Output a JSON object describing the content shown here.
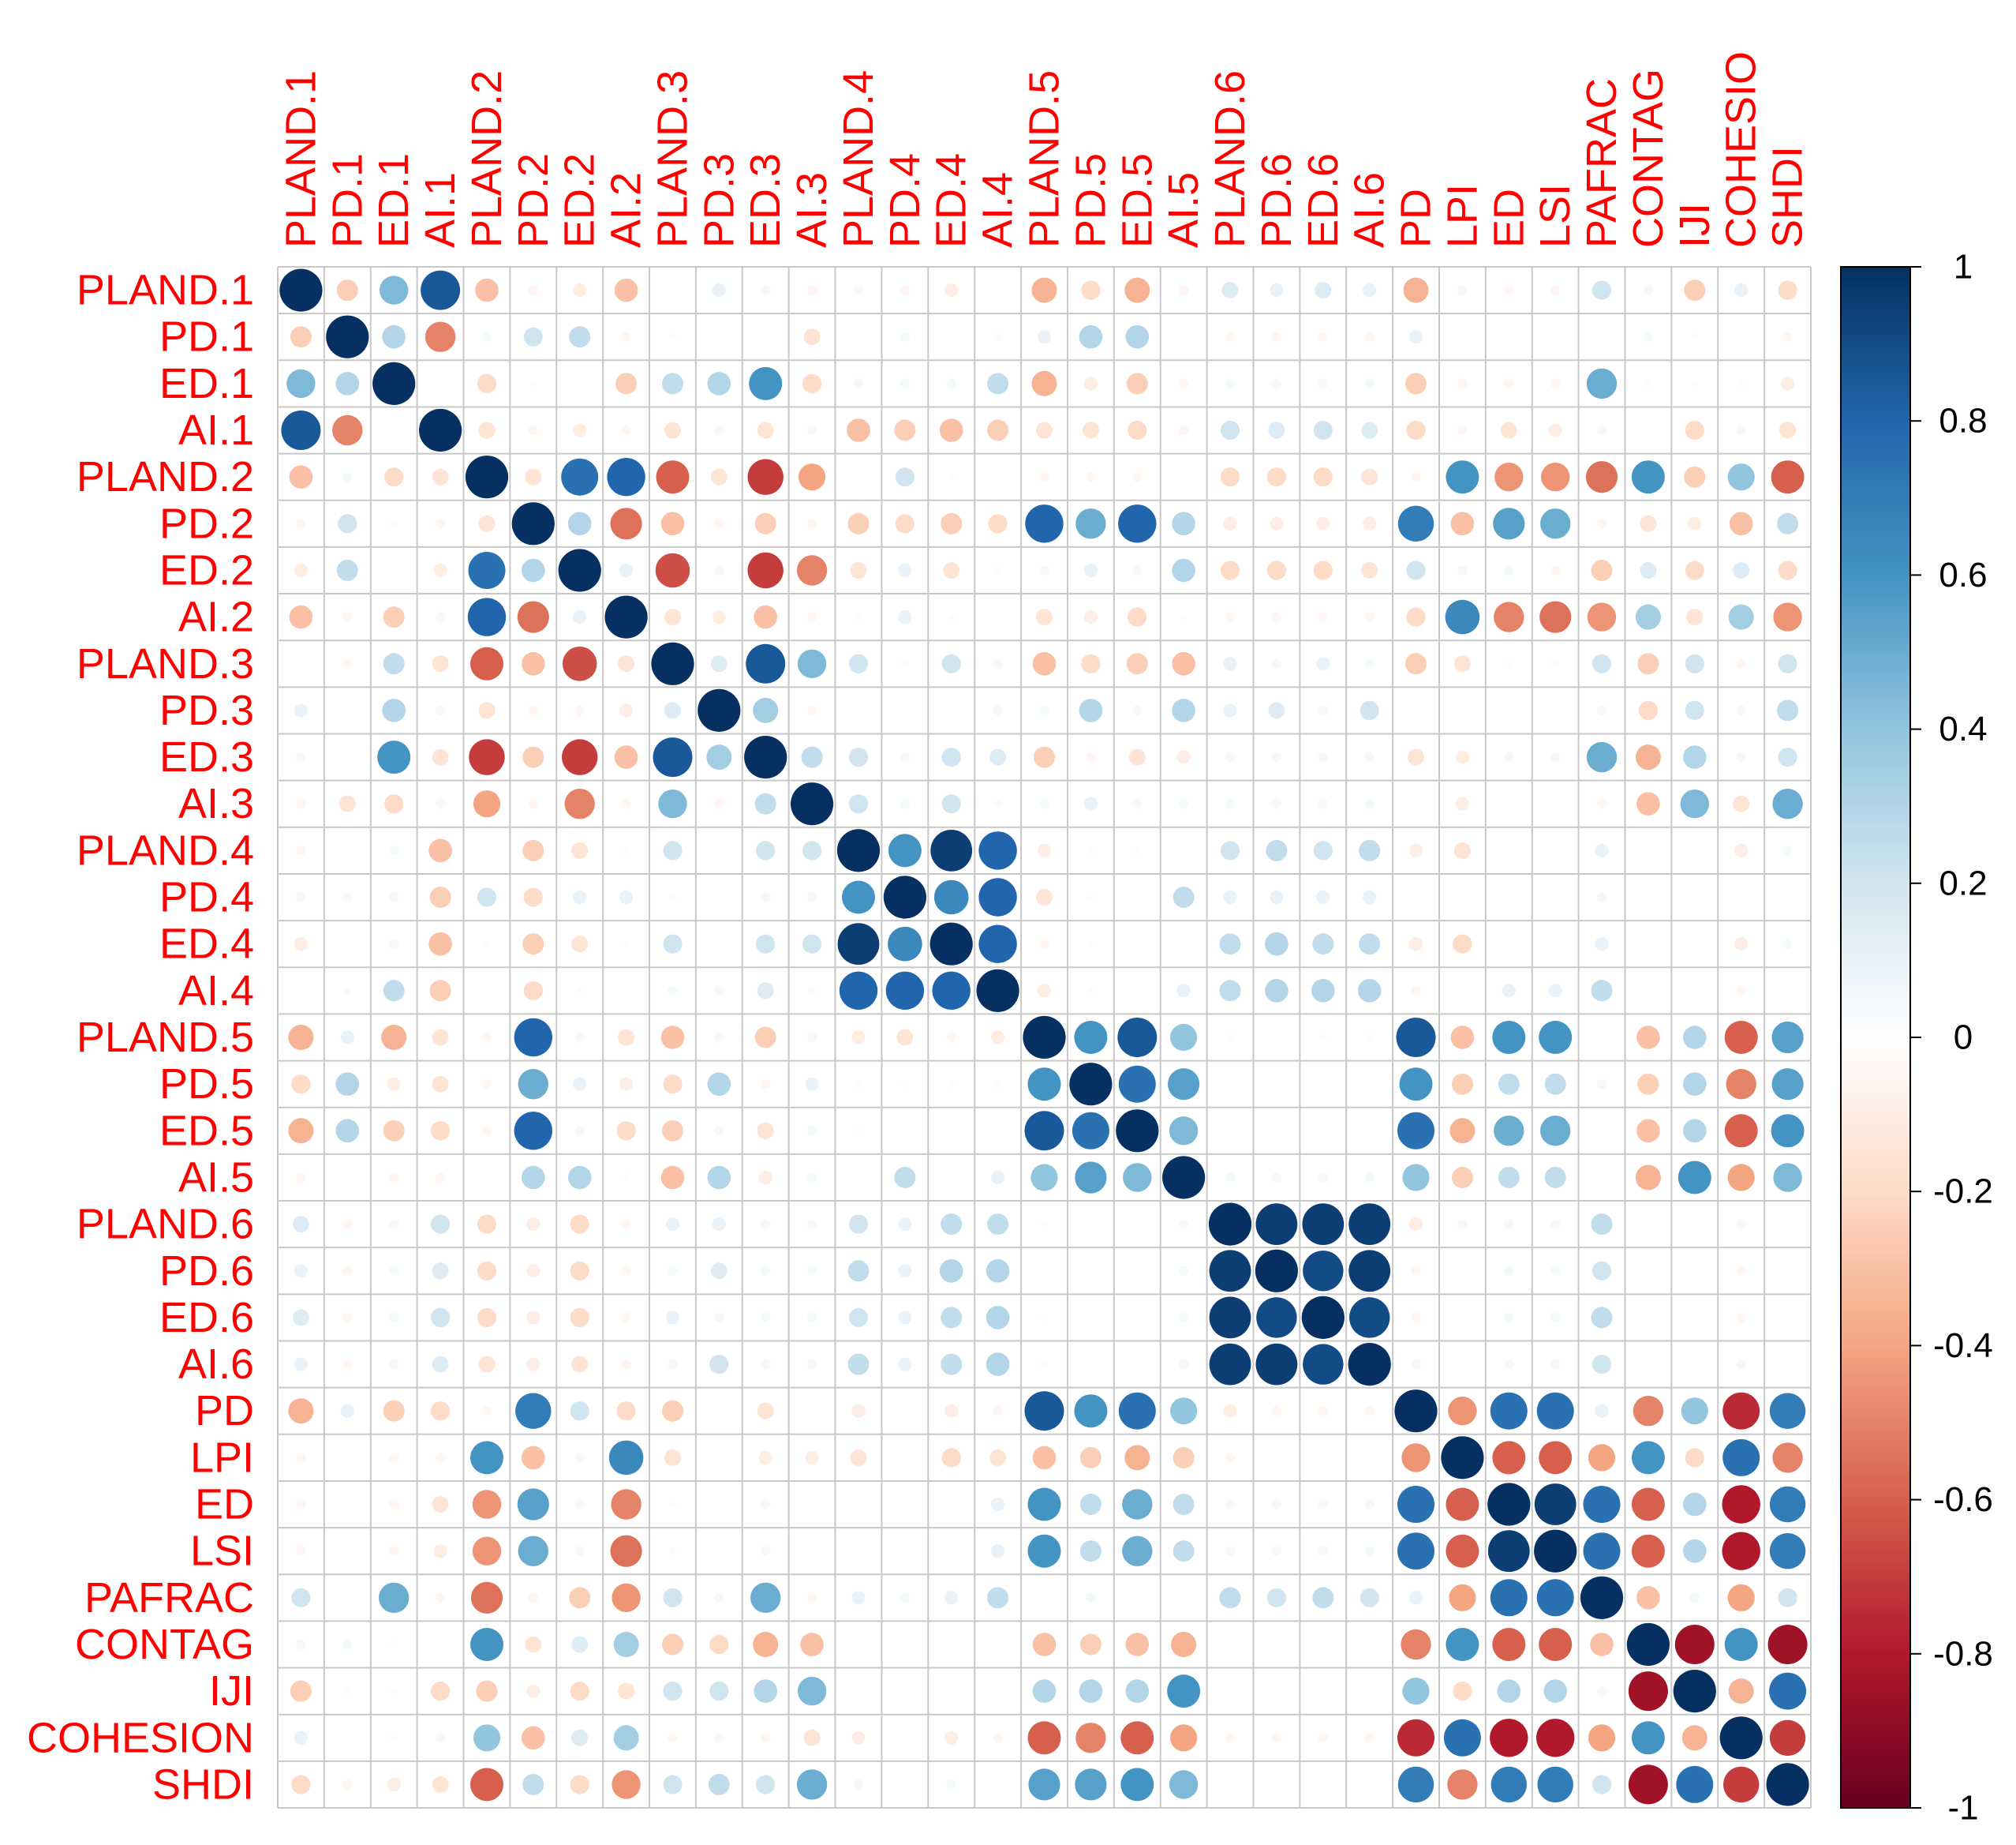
{
  "chart_data": {
    "type": "heatmap",
    "title": "",
    "labels": [
      "PLAND.1",
      "PD.1",
      "ED.1",
      "AI.1",
      "PLAND.2",
      "PD.2",
      "ED.2",
      "AI.2",
      "PLAND.3",
      "PD.3",
      "ED.3",
      "AI.3",
      "PLAND.4",
      "PD.4",
      "ED.4",
      "AI.4",
      "PLAND.5",
      "PD.5",
      "ED.5",
      "AI.5",
      "PLAND.6",
      "PD.6",
      "ED.6",
      "AI.6",
      "PD",
      "LPI",
      "ED",
      "LSI",
      "PAFRAC",
      "CONTAG",
      "IJI",
      "COHESION",
      "SHDI"
    ],
    "row_label_display": [
      "PLAND.1",
      "PD.1",
      "ED.1",
      "AI.1",
      "PLAND.2",
      "PD.2",
      "ED.2",
      "AI.2",
      "PLAND.3",
      "PD.3",
      "ED.3",
      "AI.3",
      "PLAND.4",
      "PD.4",
      "ED.4",
      "AI.4",
      "PLAND.5",
      "PD.5",
      "ED.5",
      "AI.5",
      "PLAND.6",
      "PD.6",
      "ED.6",
      "AI.6",
      "PD",
      "LPI",
      "ED",
      "LSI",
      "PAFRAC",
      "CONTAG",
      "IJI",
      "COHESION",
      "SHDI"
    ],
    "column_label_display": [
      "PLAND.1",
      "PD.1",
      "ED.1",
      "AI.1",
      "PLAND.2",
      "PD.2",
      "ED.2",
      "AI.2",
      "PLAND.3",
      "PD.3",
      "ED.3",
      "AI.3",
      "PLAND.4",
      "PD.4",
      "ED.4",
      "AI.4",
      "PLAND.5",
      "PD.5",
      "ED.5",
      "AI.5",
      "PLAND.6",
      "PD.6",
      "ED.6",
      "AI.6",
      "PD",
      "LPI",
      "ED",
      "LSI",
      "PAFRAC",
      "CONTAG",
      "IJI",
      "COHESIO",
      "SHDI"
    ],
    "colorbar": {
      "range": [
        -1,
        1
      ],
      "ticks": [
        1,
        0.8,
        0.6,
        0.4,
        0.2,
        0,
        -0.2,
        -0.4,
        -0.6,
        -0.8,
        -1
      ],
      "tick_labels": [
        "1",
        "0.8",
        "0.6",
        "0.4",
        "0.2",
        "0",
        "-0.2",
        "-0.4",
        "-0.6",
        "-0.8",
        "-1"
      ],
      "colors": [
        "#67001F",
        "#B2182B",
        "#D6604D",
        "#F4A582",
        "#FDDBC7",
        "#FFFFFF",
        "#D1E5F0",
        "#92C5DE",
        "#4393C3",
        "#2166AC",
        "#053061"
      ]
    },
    "grid": true,
    "label_color": "#ff0000",
    "matrix": [
      [
        1,
        -0.25,
        0.45,
        0.85,
        -0.3,
        -0.05,
        -0.1,
        -0.3,
        0,
        0.1,
        0.05,
        -0.05,
        -0.05,
        -0.05,
        -0.1,
        0,
        -0.35,
        -0.2,
        -0.35,
        -0.05,
        0.15,
        0.1,
        0.15,
        0.1,
        -0.35,
        -0.05,
        -0.05,
        -0.05,
        0.2,
        0.05,
        -0.25,
        0.1,
        -0.2
      ],
      [
        -0.25,
        1,
        0.3,
        -0.5,
        0.05,
        0.2,
        0.25,
        -0.05,
        -0.02,
        0,
        0,
        -0.15,
        0,
        0.05,
        0,
        0.03,
        0.1,
        0.3,
        0.3,
        0,
        -0.05,
        -0.05,
        -0.05,
        -0.05,
        0.1,
        0,
        0,
        0,
        0,
        0.05,
        -0.02,
        0,
        -0.05
      ],
      [
        0.45,
        0.3,
        1,
        0,
        -0.2,
        -0.02,
        0,
        -0.25,
        0.25,
        0.3,
        0.6,
        -0.2,
        0.05,
        0.05,
        0.05,
        0.25,
        -0.35,
        -0.1,
        -0.25,
        -0.05,
        0.05,
        0.05,
        0.05,
        0.05,
        -0.25,
        -0.05,
        -0.05,
        -0.05,
        0.5,
        -0.02,
        -0.02,
        0.02,
        -0.1
      ],
      [
        0.85,
        -0.5,
        0,
        1,
        -0.15,
        -0.05,
        -0.1,
        -0.05,
        -0.15,
        0.05,
        -0.15,
        0.05,
        -0.3,
        -0.25,
        -0.3,
        -0.25,
        -0.15,
        -0.15,
        -0.2,
        -0.05,
        0.2,
        0.15,
        0.2,
        0.15,
        -0.2,
        -0.05,
        -0.15,
        -0.1,
        -0.05,
        0,
        -0.2,
        0.05,
        -0.15
      ],
      [
        -0.3,
        0.05,
        -0.2,
        -0.15,
        1,
        -0.15,
        0.75,
        0.8,
        -0.6,
        -0.15,
        -0.7,
        -0.4,
        0,
        0.2,
        -0.02,
        0,
        -0.05,
        -0.05,
        -0.05,
        0,
        -0.2,
        -0.2,
        -0.2,
        -0.15,
        -0.05,
        0.6,
        -0.45,
        -0.45,
        -0.55,
        0.6,
        -0.25,
        0.4,
        -0.6
      ],
      [
        -0.05,
        0.2,
        -0.02,
        -0.05,
        -0.15,
        1,
        0.3,
        -0.55,
        -0.3,
        -0.05,
        -0.25,
        -0.05,
        -0.25,
        -0.2,
        -0.25,
        -0.2,
        0.8,
        0.5,
        0.8,
        0.3,
        -0.1,
        -0.1,
        -0.1,
        -0.1,
        0.7,
        -0.3,
        0.55,
        0.5,
        -0.05,
        -0.15,
        -0.1,
        -0.3,
        0.25
      ],
      [
        -0.1,
        0.25,
        0,
        -0.1,
        0.75,
        0.3,
        1,
        0.1,
        -0.65,
        -0.05,
        -0.7,
        -0.5,
        -0.15,
        0.1,
        -0.15,
        -0.02,
        0.05,
        0.1,
        0.05,
        0.3,
        -0.2,
        -0.2,
        -0.2,
        -0.15,
        0.2,
        0.05,
        0.05,
        -0.05,
        -0.25,
        0.15,
        -0.2,
        0.15,
        -0.2
      ],
      [
        -0.3,
        -0.05,
        -0.25,
        -0.05,
        0.8,
        -0.55,
        0.1,
        1,
        -0.15,
        -0.1,
        -0.3,
        -0.05,
        0.02,
        0.1,
        0.02,
        0,
        -0.15,
        -0.1,
        -0.2,
        -0.02,
        -0.05,
        -0.05,
        -0.05,
        -0.05,
        -0.2,
        0.65,
        -0.5,
        -0.55,
        -0.45,
        0.35,
        -0.15,
        0.35,
        -0.45
      ],
      [
        0,
        -0.05,
        0.25,
        -0.15,
        -0.6,
        -0.3,
        -0.65,
        -0.15,
        1,
        0.15,
        0.85,
        0.45,
        0.2,
        0.02,
        0.2,
        0.05,
        -0.3,
        -0.2,
        -0.25,
        -0.3,
        0.1,
        0.05,
        0.1,
        0.05,
        -0.25,
        -0.15,
        0.02,
        0.02,
        0.2,
        -0.25,
        0.2,
        -0.05,
        0.2
      ],
      [
        0.1,
        0,
        0.3,
        0.05,
        -0.15,
        -0.05,
        -0.05,
        -0.1,
        0.15,
        1,
        0.35,
        -0.05,
        0,
        0,
        0,
        0.05,
        0.05,
        0.3,
        0.05,
        0.3,
        0.1,
        0.15,
        0.05,
        0.2,
        0,
        0,
        0,
        0,
        0.05,
        -0.2,
        0.2,
        0.05,
        0.25
      ],
      [
        0.05,
        0,
        0.6,
        -0.15,
        -0.7,
        -0.25,
        -0.7,
        -0.3,
        0.85,
        0.35,
        1,
        0.25,
        0.2,
        0.05,
        0.2,
        0.15,
        -0.25,
        -0.05,
        -0.15,
        -0.1,
        0.05,
        0.05,
        0.05,
        0.05,
        -0.15,
        -0.1,
        0.05,
        0.05,
        0.5,
        -0.35,
        0.3,
        -0.05,
        0.2
      ],
      [
        -0.05,
        -0.15,
        -0.2,
        0.05,
        -0.4,
        -0.05,
        -0.5,
        -0.05,
        0.45,
        -0.05,
        0.25,
        1,
        0.2,
        0.05,
        0.2,
        0.03,
        0.05,
        0.1,
        0.05,
        0.05,
        0.05,
        0.05,
        0.05,
        0.05,
        0,
        -0.1,
        0,
        0,
        -0.05,
        -0.3,
        0.45,
        -0.15,
        0.5
      ],
      [
        -0.05,
        0,
        0.05,
        -0.3,
        0,
        -0.25,
        -0.15,
        0.02,
        0.2,
        0,
        0.2,
        0.2,
        1,
        0.6,
        0.95,
        0.8,
        -0.1,
        -0.02,
        -0.02,
        0,
        0.2,
        0.25,
        0.2,
        0.25,
        -0.1,
        -0.15,
        0,
        0,
        0.1,
        0,
        0,
        -0.1,
        0.05
      ],
      [
        -0.05,
        0.05,
        0.05,
        -0.25,
        0.2,
        -0.2,
        0.1,
        0.1,
        0.02,
        0,
        0.05,
        0.05,
        0.6,
        1,
        0.65,
        0.8,
        -0.15,
        0.02,
        0,
        0.25,
        0.1,
        0.1,
        0.1,
        0.1,
        0,
        0,
        0,
        0,
        0.05,
        0,
        0,
        0,
        0
      ],
      [
        -0.1,
        0,
        0.05,
        -0.3,
        -0.02,
        -0.25,
        -0.15,
        0.02,
        0.2,
        0,
        0.2,
        0.2,
        0.95,
        0.65,
        1,
        0.8,
        -0.05,
        -0.02,
        0,
        0,
        0.25,
        0.3,
        0.25,
        0.25,
        -0.1,
        -0.2,
        0,
        0,
        0.1,
        0,
        0,
        -0.1,
        0.05
      ],
      [
        0,
        0.03,
        0.25,
        -0.25,
        0,
        -0.2,
        -0.02,
        0,
        0.05,
        0.05,
        0.15,
        0.03,
        0.8,
        0.8,
        0.8,
        1,
        -0.1,
        0.02,
        0,
        0.1,
        0.25,
        0.3,
        0.3,
        0.3,
        -0.05,
        0,
        0.1,
        0.1,
        0.25,
        0,
        0,
        -0.05,
        0
      ],
      [
        -0.35,
        0.1,
        -0.35,
        -0.15,
        -0.05,
        0.8,
        0.05,
        -0.15,
        -0.3,
        0.05,
        -0.25,
        0.05,
        -0.1,
        -0.15,
        -0.05,
        -0.1,
        1,
        0.6,
        0.85,
        0.4,
        -0.02,
        0,
        -0.02,
        -0.02,
        0.85,
        -0.3,
        0.6,
        0.6,
        0,
        -0.3,
        0.3,
        -0.6,
        0.55
      ],
      [
        -0.2,
        0.3,
        -0.1,
        -0.15,
        -0.05,
        0.5,
        0.1,
        -0.1,
        -0.2,
        0.3,
        -0.05,
        0.1,
        -0.02,
        0.02,
        -0.02,
        0.02,
        0.6,
        1,
        0.75,
        0.55,
        0,
        0,
        0,
        0,
        0.6,
        -0.25,
        0.25,
        0.25,
        0.05,
        -0.25,
        0.3,
        -0.5,
        0.55
      ],
      [
        -0.35,
        0.3,
        -0.25,
        -0.2,
        -0.05,
        0.8,
        0.05,
        -0.2,
        -0.25,
        0.05,
        -0.15,
        0.05,
        -0.02,
        0,
        0,
        0,
        0.85,
        0.75,
        1,
        0.45,
        0,
        0,
        0,
        0,
        0.75,
        -0.35,
        0.5,
        0.5,
        0,
        -0.3,
        0.3,
        -0.6,
        0.6
      ],
      [
        -0.05,
        0,
        -0.05,
        -0.05,
        0,
        0.3,
        0.3,
        -0.02,
        -0.3,
        0.3,
        -0.1,
        0.05,
        0,
        0.25,
        0,
        0.1,
        0.4,
        0.55,
        0.45,
        1,
        0.05,
        0.05,
        0.05,
        0.05,
        0.4,
        -0.25,
        0.25,
        0.25,
        0,
        -0.35,
        0.6,
        -0.4,
        0.45
      ],
      [
        0.15,
        -0.05,
        0.05,
        0.2,
        -0.2,
        -0.1,
        -0.2,
        -0.05,
        0.1,
        0.1,
        0.05,
        0.05,
        0.2,
        0.1,
        0.25,
        0.25,
        -0.02,
        0,
        0,
        0.05,
        1,
        0.95,
        0.95,
        0.95,
        -0.1,
        -0.05,
        0.05,
        0.05,
        0.25,
        0,
        0,
        -0.05,
        0
      ],
      [
        0.1,
        -0.05,
        0.05,
        0.15,
        -0.2,
        -0.1,
        -0.2,
        -0.05,
        0.05,
        0.15,
        0.05,
        0.05,
        0.25,
        0.1,
        0.3,
        0.3,
        0,
        0,
        0,
        0.05,
        0.95,
        1,
        0.9,
        0.95,
        -0.05,
        0,
        0.05,
        0.05,
        0.2,
        0,
        0,
        -0.05,
        0
      ],
      [
        0.15,
        -0.05,
        0.05,
        0.2,
        -0.2,
        -0.1,
        -0.2,
        -0.05,
        0.1,
        0.05,
        0.05,
        0.05,
        0.2,
        0.1,
        0.25,
        0.3,
        -0.02,
        0,
        0,
        0.05,
        0.95,
        0.9,
        1,
        0.9,
        -0.05,
        0,
        0.05,
        0.05,
        0.25,
        0,
        0,
        -0.05,
        0
      ],
      [
        0.1,
        -0.05,
        0.05,
        0.15,
        -0.15,
        -0.1,
        -0.15,
        -0.05,
        0.05,
        0.2,
        0.05,
        0.05,
        0.25,
        0.1,
        0.25,
        0.3,
        -0.02,
        0,
        0,
        0.05,
        0.95,
        0.95,
        0.9,
        1,
        -0.05,
        0,
        0.05,
        0.05,
        0.2,
        0,
        0,
        -0.05,
        0
      ],
      [
        -0.35,
        0.1,
        -0.25,
        -0.2,
        -0.05,
        0.7,
        0.2,
        -0.2,
        -0.25,
        0,
        -0.15,
        0,
        -0.1,
        0,
        -0.1,
        -0.05,
        0.85,
        0.6,
        0.75,
        0.4,
        -0.1,
        -0.05,
        -0.05,
        -0.05,
        1,
        -0.45,
        0.75,
        0.75,
        0.1,
        -0.5,
        0.4,
        -0.75,
        0.7
      ],
      [
        -0.05,
        0,
        -0.05,
        -0.05,
        0.6,
        -0.3,
        0.05,
        0.65,
        -0.15,
        0,
        -0.1,
        -0.1,
        -0.15,
        0,
        -0.2,
        -0.15,
        -0.3,
        -0.25,
        -0.35,
        -0.25,
        -0.05,
        0,
        0,
        0,
        -0.45,
        1,
        -0.6,
        -0.6,
        -0.4,
        0.6,
        -0.2,
        0.75,
        -0.5
      ],
      [
        -0.05,
        0,
        -0.05,
        -0.15,
        -0.45,
        0.55,
        0.05,
        -0.5,
        0.02,
        0,
        0.05,
        0,
        0,
        0,
        0,
        0.1,
        0.6,
        0.25,
        0.5,
        0.25,
        0.05,
        0.05,
        0.05,
        0.05,
        0.75,
        -0.6,
        1,
        0.95,
        0.75,
        -0.6,
        0.3,
        -0.8,
        0.7
      ],
      [
        -0.05,
        0,
        -0.05,
        -0.1,
        -0.45,
        0.5,
        -0.05,
        -0.55,
        0.02,
        0,
        0.05,
        0,
        0,
        0,
        0,
        0.1,
        0.6,
        0.25,
        0.5,
        0.25,
        0.05,
        0.05,
        0.05,
        0.05,
        0.75,
        -0.6,
        0.95,
        1,
        0.75,
        -0.6,
        0.3,
        -0.8,
        0.7
      ],
      [
        0.2,
        0,
        0.5,
        -0.05,
        -0.55,
        -0.05,
        -0.25,
        -0.45,
        0.2,
        0.05,
        0.5,
        -0.05,
        0.1,
        0.05,
        0.1,
        0.25,
        0,
        0.05,
        0,
        0,
        0.25,
        0.2,
        0.25,
        0.2,
        0.1,
        -0.4,
        0.75,
        0.75,
        1,
        -0.3,
        0.05,
        -0.4,
        0.2
      ],
      [
        0.05,
        0.05,
        -0.02,
        0,
        0.6,
        -0.15,
        0.15,
        0.35,
        -0.25,
        -0.2,
        -0.35,
        -0.3,
        0,
        0,
        0,
        0,
        -0.3,
        -0.25,
        -0.3,
        -0.35,
        0,
        0,
        0,
        0,
        -0.5,
        0.6,
        -0.6,
        -0.6,
        -0.3,
        1,
        -0.85,
        0.6,
        -0.85
      ],
      [
        -0.25,
        -0.02,
        -0.02,
        -0.2,
        -0.25,
        -0.1,
        -0.2,
        -0.15,
        0.2,
        0.2,
        0.3,
        0.45,
        0,
        0,
        0,
        0,
        0.3,
        0.3,
        0.3,
        0.6,
        0,
        0,
        0,
        0,
        0.4,
        -0.2,
        0.3,
        0.3,
        0.05,
        -0.85,
        1,
        -0.35,
        0.75
      ],
      [
        0.1,
        0,
        0.02,
        0.05,
        0.4,
        -0.3,
        0.15,
        0.35,
        -0.05,
        0.05,
        -0.05,
        -0.15,
        -0.1,
        0,
        -0.1,
        -0.05,
        -0.6,
        -0.5,
        -0.6,
        -0.4,
        -0.05,
        -0.05,
        -0.05,
        -0.05,
        -0.75,
        0.75,
        -0.8,
        -0.8,
        -0.4,
        0.6,
        -0.35,
        1,
        -0.7
      ],
      [
        -0.2,
        -0.05,
        -0.1,
        -0.15,
        -0.6,
        0.25,
        -0.2,
        -0.45,
        0.2,
        0.25,
        0.2,
        0.5,
        0.05,
        0,
        0.05,
        0,
        0.55,
        0.55,
        0.6,
        0.45,
        0,
        0,
        0,
        0,
        0.7,
        -0.5,
        0.7,
        0.7,
        0.2,
        -0.85,
        0.75,
        -0.7,
        1
      ]
    ]
  }
}
